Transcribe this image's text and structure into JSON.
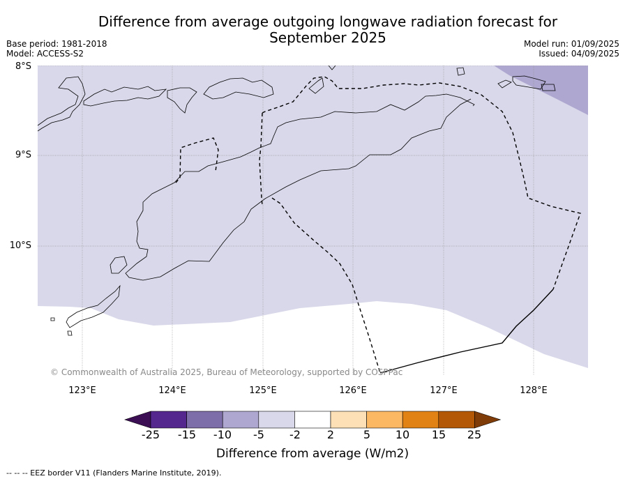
{
  "header": {
    "title_line1": "Difference from average outgoing longwave radiation forecast for",
    "title_line2": "September 2025",
    "base_period": "Base period: 1981-2018",
    "model": "Model: ACCESS-S2",
    "model_run": "Model run: 01/09/2025",
    "issued": "Issued: 04/09/2025"
  },
  "map": {
    "lat_labels": [
      "8°S",
      "9°S",
      "10°S"
    ],
    "lon_labels": [
      "123°E",
      "124°E",
      "125°E",
      "126°E",
      "127°E",
      "128°E"
    ],
    "copyright": "© Commonwealth of Australia 2025, Bureau of Meteorology, supported by COSPPac"
  },
  "colorbar": {
    "ticks": [
      "-25",
      "-15",
      "-10",
      "-5",
      "-2",
      "2",
      "5",
      "10",
      "15",
      "25"
    ],
    "colors": [
      "#3c0f55",
      "#54278f",
      "#7d6da9",
      "#aea7cf",
      "#d8d8ea",
      "#ffffff",
      "#fde0b6",
      "#fdb863",
      "#e08214",
      "#b35806",
      "#7f3b08"
    ],
    "label": "Difference from average (W/m2)"
  },
  "legend": {
    "eez_note": "--  --  -- EEZ border V11 (Flanders Marine Institute, 2019)."
  }
}
